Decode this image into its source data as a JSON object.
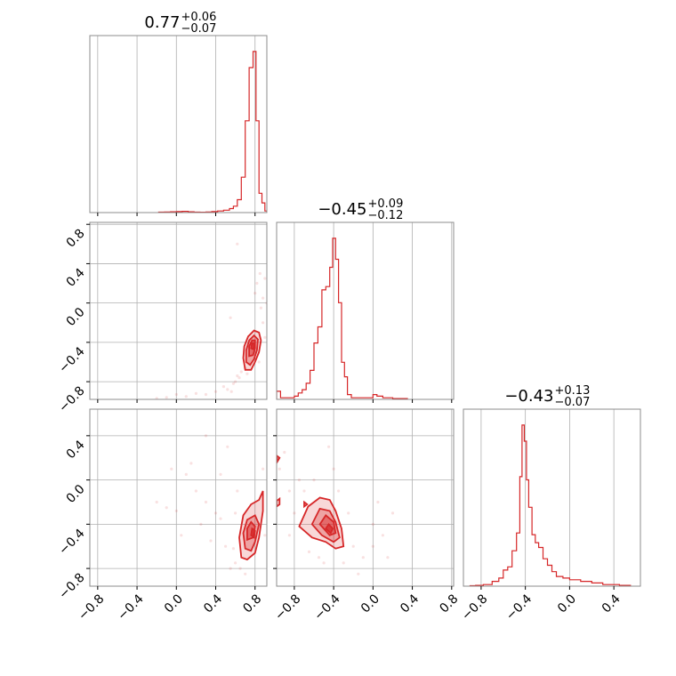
{
  "chart_data": {
    "type": "corner",
    "colors": {
      "series": "#d62728",
      "grid": "#b0b0b0",
      "frame": "#8c8c8c"
    },
    "params": [
      {
        "index": 0,
        "title_value": "0.77",
        "title_plus": "+0.06",
        "title_minus": "−0.07",
        "range": [
          -0.88,
          0.92
        ]
      },
      {
        "index": 1,
        "title_value": "−0.45",
        "title_plus": "+0.09",
        "title_minus": "−0.12",
        "range": [
          -0.98,
          0.82
        ]
      },
      {
        "index": 2,
        "title_value": "−0.43",
        "title_plus": "+0.13",
        "title_minus": "−0.07",
        "range": [
          -0.96,
          0.64
        ]
      }
    ],
    "ticks": [
      -0.8,
      -0.4,
      0.0,
      0.4,
      0.8
    ],
    "tick_labels": [
      "−0.8",
      "−0.4",
      "0.0",
      "0.4",
      "0.8"
    ],
    "histograms": [
      {
        "param": 0,
        "bins": [
          [
            -0.18,
            -0.12,
            0.3
          ],
          [
            -0.12,
            -0.06,
            0.4
          ],
          [
            -0.06,
            0.0,
            0.5
          ],
          [
            0.0,
            0.06,
            0.6
          ],
          [
            0.06,
            0.12,
            0.8
          ],
          [
            0.12,
            0.18,
            0.5
          ],
          [
            0.18,
            0.24,
            0.3
          ],
          [
            0.24,
            0.3,
            0.2
          ],
          [
            0.3,
            0.36,
            0.4
          ],
          [
            0.36,
            0.42,
            0.6
          ],
          [
            0.42,
            0.48,
            1.0
          ],
          [
            0.48,
            0.54,
            1.5
          ],
          [
            0.54,
            0.58,
            2.5
          ],
          [
            0.58,
            0.62,
            4
          ],
          [
            0.62,
            0.66,
            8
          ],
          [
            0.66,
            0.7,
            22
          ],
          [
            0.7,
            0.74,
            57
          ],
          [
            0.74,
            0.78,
            90
          ],
          [
            0.78,
            0.81,
            100
          ],
          [
            0.81,
            0.84,
            57
          ],
          [
            0.84,
            0.87,
            12
          ],
          [
            0.87,
            0.9,
            6
          ],
          [
            0.9,
            0.92,
            1
          ]
        ]
      },
      {
        "param": 1,
        "bins": [
          [
            -0.98,
            -0.94,
            5
          ],
          [
            -0.94,
            -0.9,
            1
          ],
          [
            -0.9,
            -0.85,
            1
          ],
          [
            -0.85,
            -0.8,
            1
          ],
          [
            -0.8,
            -0.76,
            2
          ],
          [
            -0.76,
            -0.72,
            4
          ],
          [
            -0.72,
            -0.68,
            6
          ],
          [
            -0.68,
            -0.64,
            10
          ],
          [
            -0.64,
            -0.6,
            18
          ],
          [
            -0.6,
            -0.56,
            35
          ],
          [
            -0.56,
            -0.52,
            45
          ],
          [
            -0.52,
            -0.48,
            68
          ],
          [
            -0.48,
            -0.44,
            70
          ],
          [
            -0.44,
            -0.41,
            82
          ],
          [
            -0.41,
            -0.38,
            100
          ],
          [
            -0.38,
            -0.35,
            87
          ],
          [
            -0.35,
            -0.32,
            60
          ],
          [
            -0.32,
            -0.29,
            23
          ],
          [
            -0.29,
            -0.26,
            14
          ],
          [
            -0.26,
            -0.22,
            3
          ],
          [
            -0.22,
            -0.15,
            1
          ],
          [
            -0.15,
            -0.1,
            1
          ],
          [
            -0.1,
            -0.04,
            1
          ],
          [
            -0.04,
            0.0,
            1
          ],
          [
            0.0,
            0.04,
            3
          ],
          [
            0.04,
            0.1,
            2
          ],
          [
            0.1,
            0.2,
            1
          ],
          [
            0.2,
            0.35,
            0.5
          ]
        ]
      },
      {
        "param": 2,
        "bins": [
          [
            -0.9,
            -0.85,
            0.3
          ],
          [
            -0.85,
            -0.78,
            0.5
          ],
          [
            -0.78,
            -0.7,
            1
          ],
          [
            -0.7,
            -0.64,
            3
          ],
          [
            -0.64,
            -0.6,
            5
          ],
          [
            -0.6,
            -0.56,
            10
          ],
          [
            -0.56,
            -0.52,
            12
          ],
          [
            -0.52,
            -0.48,
            22
          ],
          [
            -0.48,
            -0.45,
            33
          ],
          [
            -0.45,
            -0.43,
            68
          ],
          [
            -0.43,
            -0.41,
            100
          ],
          [
            -0.41,
            -0.39,
            90
          ],
          [
            -0.39,
            -0.37,
            66
          ],
          [
            -0.37,
            -0.34,
            49
          ],
          [
            -0.34,
            -0.31,
            32
          ],
          [
            -0.31,
            -0.28,
            27
          ],
          [
            -0.28,
            -0.24,
            24
          ],
          [
            -0.24,
            -0.2,
            17
          ],
          [
            -0.2,
            -0.16,
            13
          ],
          [
            -0.16,
            -0.12,
            9
          ],
          [
            -0.12,
            -0.06,
            6
          ],
          [
            -0.06,
            0.0,
            5
          ],
          [
            0.0,
            0.1,
            4
          ],
          [
            0.1,
            0.2,
            3
          ],
          [
            0.2,
            0.3,
            2
          ],
          [
            0.3,
            0.45,
            1
          ],
          [
            0.45,
            0.55,
            0.5
          ]
        ]
      }
    ],
    "pairs": [
      {
        "x_param": 0,
        "y_param": 1,
        "levels": [
          [
            [
              0.7,
              -0.68
            ],
            [
              0.68,
              -0.56
            ],
            [
              0.69,
              -0.44
            ],
            [
              0.73,
              -0.34
            ],
            [
              0.79,
              -0.28
            ],
            [
              0.84,
              -0.3
            ],
            [
              0.86,
              -0.38
            ],
            [
              0.84,
              -0.5
            ],
            [
              0.8,
              -0.6
            ],
            [
              0.76,
              -0.68
            ]
          ],
          [
            [
              0.71,
              -0.6
            ],
            [
              0.71,
              -0.48
            ],
            [
              0.74,
              -0.38
            ],
            [
              0.79,
              -0.33
            ],
            [
              0.83,
              -0.37
            ],
            [
              0.82,
              -0.48
            ],
            [
              0.79,
              -0.57
            ],
            [
              0.75,
              -0.63
            ]
          ],
          [
            [
              0.74,
              -0.54
            ],
            [
              0.74,
              -0.44
            ],
            [
              0.77,
              -0.38
            ],
            [
              0.8,
              -0.38
            ],
            [
              0.8,
              -0.46
            ],
            [
              0.78,
              -0.53
            ]
          ],
          [
            [
              0.76,
              -0.46
            ],
            [
              0.77,
              -0.41
            ],
            [
              0.79,
              -0.41
            ],
            [
              0.79,
              -0.45
            ],
            [
              0.78,
              -0.47
            ]
          ]
        ],
        "scatter": [
          [
            0.52,
            -0.88
          ],
          [
            0.6,
            -0.8
          ],
          [
            0.62,
            -0.74
          ],
          [
            0.58,
            -0.82
          ],
          [
            0.66,
            -0.7
          ],
          [
            0.7,
            -0.66
          ],
          [
            0.72,
            -0.72
          ],
          [
            0.64,
            -0.76
          ],
          [
            0.82,
            0.2
          ],
          [
            0.9,
            0.25
          ],
          [
            0.88,
            0.05
          ],
          [
            0.86,
            -0.05
          ],
          [
            0.92,
            0.0
          ],
          [
            0.8,
            0.1
          ],
          [
            0.85,
            0.3
          ],
          [
            0.62,
            0.6
          ],
          [
            0.55,
            -0.15
          ],
          [
            0.4,
            -0.9
          ],
          [
            0.2,
            -0.92
          ],
          [
            0.1,
            -0.95
          ],
          [
            0.0,
            -0.93
          ],
          [
            -0.1,
            -0.96
          ],
          [
            -0.2,
            -0.97
          ],
          [
            0.3,
            -0.93
          ],
          [
            0.48,
            -0.85
          ],
          [
            0.56,
            -0.9
          ],
          [
            0.74,
            -0.62
          ],
          [
            0.88,
            -0.2
          ],
          [
            0.84,
            -0.6
          ],
          [
            0.9,
            -0.35
          ]
        ]
      },
      {
        "x_param": 0,
        "y_param": 2,
        "levels": [
          [
            [
              0.66,
              -0.7
            ],
            [
              0.64,
              -0.52
            ],
            [
              0.68,
              -0.32
            ],
            [
              0.76,
              -0.22
            ],
            [
              0.84,
              -0.18
            ],
            [
              0.88,
              -0.1
            ],
            [
              0.88,
              -0.28
            ],
            [
              0.84,
              -0.52
            ],
            [
              0.8,
              -0.66
            ],
            [
              0.72,
              -0.72
            ]
          ],
          [
            [
              0.7,
              -0.62
            ],
            [
              0.68,
              -0.48
            ],
            [
              0.72,
              -0.36
            ],
            [
              0.8,
              -0.32
            ],
            [
              0.84,
              -0.4
            ],
            [
              0.8,
              -0.56
            ],
            [
              0.76,
              -0.64
            ]
          ],
          [
            [
              0.72,
              -0.54
            ],
            [
              0.72,
              -0.44
            ],
            [
              0.76,
              -0.38
            ],
            [
              0.8,
              -0.42
            ],
            [
              0.78,
              -0.52
            ]
          ],
          [
            [
              0.76,
              -0.5
            ],
            [
              0.77,
              -0.44
            ],
            [
              0.8,
              -0.46
            ],
            [
              0.79,
              -0.52
            ]
          ]
        ],
        "scatter": [
          [
            0.55,
            -0.8
          ],
          [
            0.6,
            -0.75
          ],
          [
            0.5,
            -0.6
          ],
          [
            0.45,
            -0.35
          ],
          [
            0.4,
            -0.3
          ],
          [
            0.3,
            -0.2
          ],
          [
            0.2,
            -0.1
          ],
          [
            0.1,
            0.05
          ],
          [
            -0.2,
            -0.2
          ],
          [
            -0.1,
            -0.25
          ],
          [
            0.0,
            -0.28
          ],
          [
            0.15,
            0.15
          ],
          [
            0.3,
            0.4
          ],
          [
            0.52,
            0.3
          ],
          [
            0.62,
            -0.1
          ],
          [
            0.35,
            -0.55
          ],
          [
            0.25,
            -0.4
          ],
          [
            0.65,
            -0.8
          ],
          [
            0.7,
            -0.85
          ],
          [
            0.6,
            -0.3
          ],
          [
            0.05,
            -0.5
          ],
          [
            -0.05,
            0.1
          ],
          [
            0.45,
            0.05
          ],
          [
            0.58,
            -0.62
          ],
          [
            0.88,
            0.1
          ],
          [
            0.9,
            -0.5
          ]
        ]
      },
      {
        "x_param": 1,
        "y_param": 2,
        "levels": [
          [
            [
              -0.75,
              -0.42
            ],
            [
              -0.66,
              -0.24
            ],
            [
              -0.54,
              -0.16
            ],
            [
              -0.44,
              -0.18
            ],
            [
              -0.38,
              -0.28
            ],
            [
              -0.32,
              -0.44
            ],
            [
              -0.3,
              -0.6
            ],
            [
              -0.38,
              -0.62
            ],
            [
              -0.48,
              -0.56
            ],
            [
              -0.62,
              -0.52
            ]
          ],
          [
            [
              -0.62,
              -0.4
            ],
            [
              -0.54,
              -0.26
            ],
            [
              -0.44,
              -0.28
            ],
            [
              -0.38,
              -0.38
            ],
            [
              -0.34,
              -0.52
            ],
            [
              -0.4,
              -0.56
            ],
            [
              -0.52,
              -0.5
            ]
          ],
          [
            [
              -0.54,
              -0.4
            ],
            [
              -0.48,
              -0.32
            ],
            [
              -0.4,
              -0.38
            ],
            [
              -0.38,
              -0.48
            ],
            [
              -0.44,
              -0.5
            ]
          ],
          [
            [
              -0.48,
              -0.44
            ],
            [
              -0.45,
              -0.4
            ],
            [
              -0.41,
              -0.44
            ],
            [
              -0.43,
              -0.48
            ]
          ]
        ],
        "islands": [
          [
            [
              -0.98,
              -0.19
            ],
            [
              -0.95,
              -0.17
            ],
            [
              -0.95,
              -0.22
            ],
            [
              -0.98,
              -0.24
            ]
          ],
          [
            [
              -0.98,
              0.22
            ],
            [
              -0.95,
              0.2
            ],
            [
              -0.97,
              0.17
            ]
          ],
          [
            [
              -0.7,
              -0.2
            ],
            [
              -0.67,
              -0.22
            ],
            [
              -0.7,
              -0.24
            ]
          ]
        ],
        "scatter": [
          [
            -0.95,
            0.1
          ],
          [
            -0.9,
            0.25
          ],
          [
            -0.85,
            -0.1
          ],
          [
            -0.8,
            -0.3
          ],
          [
            -0.7,
            -0.1
          ],
          [
            -0.6,
            0.0
          ],
          [
            -0.55,
            -0.7
          ],
          [
            -0.5,
            -0.75
          ],
          [
            -0.4,
            0.1
          ],
          [
            -0.3,
            -0.75
          ],
          [
            -0.2,
            -0.6
          ],
          [
            -0.1,
            -0.7
          ],
          [
            0.0,
            -0.4
          ],
          [
            0.05,
            -0.2
          ],
          [
            0.1,
            -0.5
          ],
          [
            -0.85,
            -0.5
          ],
          [
            -0.65,
            -0.65
          ],
          [
            -0.35,
            -0.1
          ],
          [
            -0.25,
            -0.3
          ],
          [
            0.15,
            -0.7
          ],
          [
            0.2,
            -0.3
          ],
          [
            -0.75,
            0.0
          ],
          [
            -0.45,
            0.3
          ],
          [
            -0.15,
            -0.85
          ],
          [
            0.0,
            -0.6
          ]
        ]
      }
    ]
  }
}
